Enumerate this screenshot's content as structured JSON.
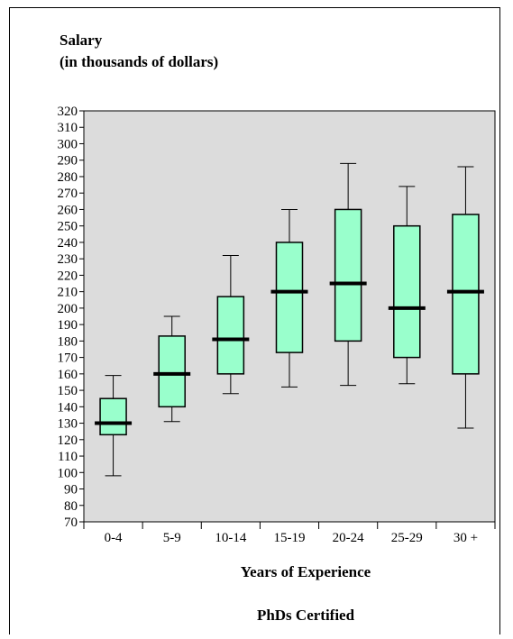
{
  "chart_data": {
    "type": "boxplot",
    "title_lines": [
      "Salary",
      "(in thousands of dollars)"
    ],
    "xlabel": "Years of Experience",
    "caption": "PhDs Certified",
    "ylim": [
      70,
      320
    ],
    "y_ticks": [
      70,
      80,
      90,
      100,
      110,
      120,
      130,
      140,
      150,
      160,
      170,
      180,
      190,
      200,
      210,
      220,
      230,
      240,
      250,
      260,
      270,
      280,
      290,
      300,
      310,
      320
    ],
    "categories": [
      "0-4",
      "5-9",
      "10-14",
      "15-19",
      "20-24",
      "25-29",
      "30 +"
    ],
    "boxes": [
      {
        "min": 98,
        "q1": 123,
        "median": 130,
        "q3": 145,
        "max": 159
      },
      {
        "min": 131,
        "q1": 140,
        "median": 160,
        "q3": 183,
        "max": 195
      },
      {
        "min": 148,
        "q1": 160,
        "median": 181,
        "q3": 207,
        "max": 232
      },
      {
        "min": 152,
        "q1": 173,
        "median": 210,
        "q3": 240,
        "max": 260
      },
      {
        "min": 153,
        "q1": 180,
        "median": 215,
        "q3": 260,
        "max": 288
      },
      {
        "min": 154,
        "q1": 170,
        "median": 200,
        "q3": 250,
        "max": 274
      },
      {
        "min": 127,
        "q1": 160,
        "median": 210,
        "q3": 257,
        "max": 286
      }
    ],
    "colors": {
      "plot_background": "#dcdcdc",
      "box_fill": "#99ffcc",
      "median": "#000000"
    },
    "grid": false
  }
}
